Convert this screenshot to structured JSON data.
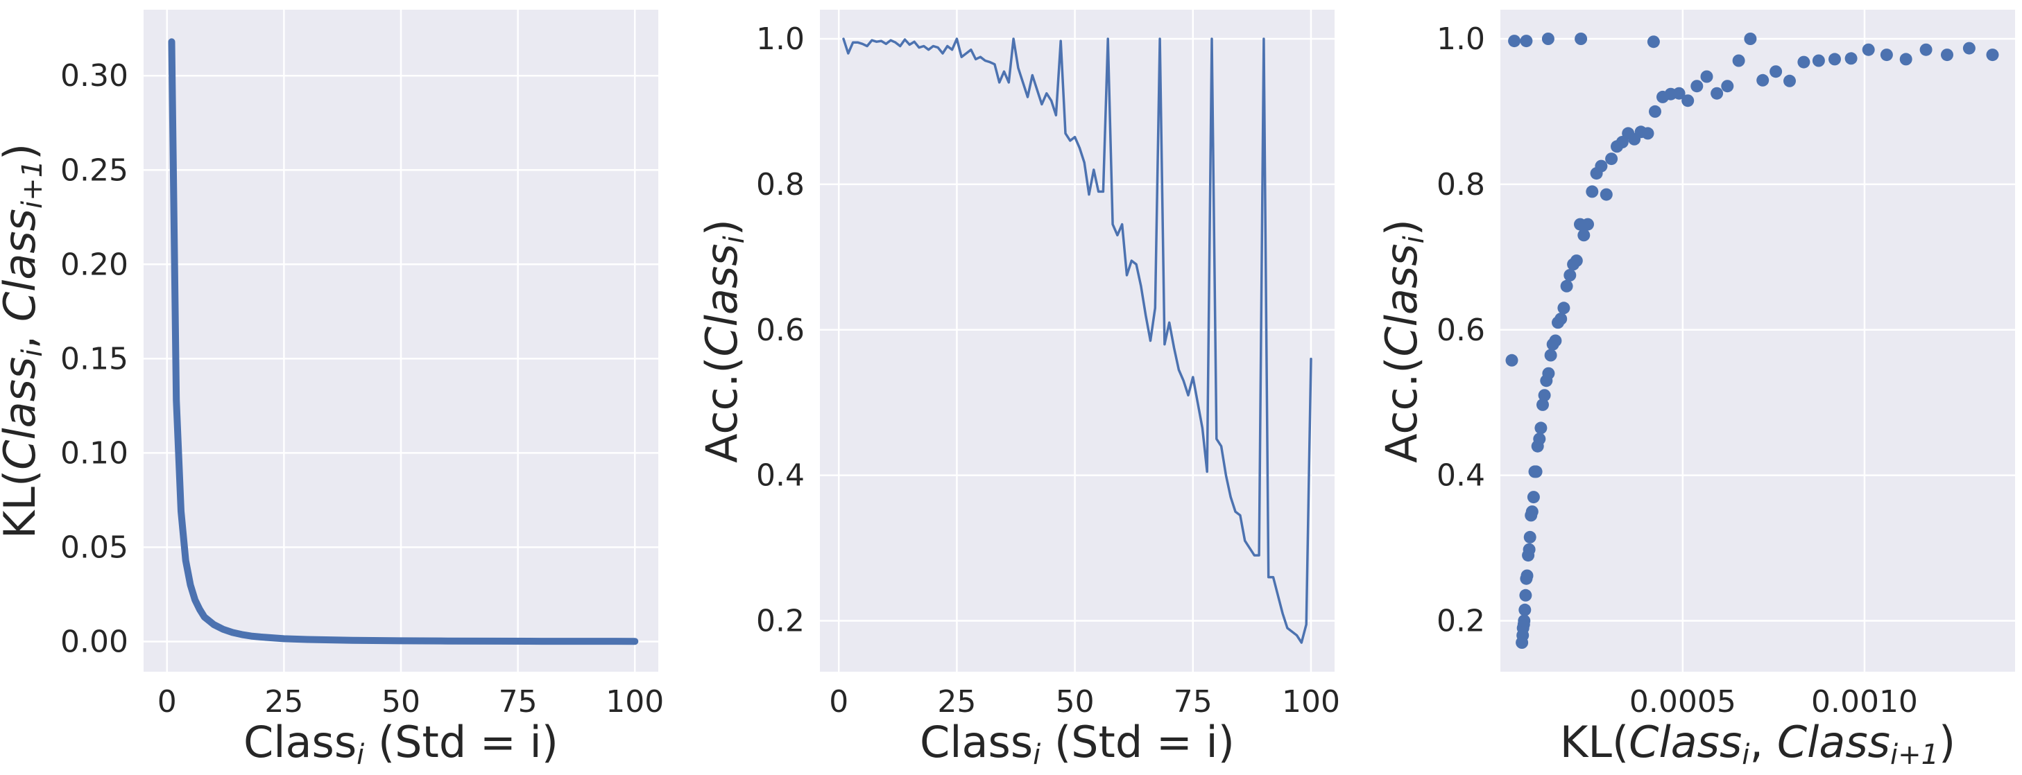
{
  "colors": {
    "panel_bg": "#EAEAF2",
    "grid": "#FFFFFF",
    "series": "#4C72B0",
    "text": "#262626"
  },
  "chart_data": [
    {
      "type": "line",
      "xlabel": "Class_i (Std = i)",
      "ylabel": "KL(Class_i, Class_{i+1})",
      "xlim": [
        -5,
        105
      ],
      "ylim": [
        -0.016,
        0.335
      ],
      "xticks": [
        0,
        25,
        50,
        75,
        100
      ],
      "xtick_labels": [
        "0",
        "25",
        "50",
        "75",
        "100"
      ],
      "yticks": [
        0.0,
        0.05,
        0.1,
        0.15,
        0.2,
        0.25,
        0.3
      ],
      "ytick_labels": [
        "0.00",
        "0.05",
        "0.10",
        "0.15",
        "0.20",
        "0.25",
        "0.30"
      ],
      "grid": true,
      "line_style": "thick",
      "x": [
        1,
        2,
        3,
        4,
        5,
        6,
        7,
        8,
        9,
        10,
        12,
        14,
        16,
        18,
        20,
        25,
        30,
        40,
        50,
        60,
        70,
        80,
        90,
        100
      ],
      "y": [
        0.318,
        0.128,
        0.069,
        0.043,
        0.03,
        0.022,
        0.017,
        0.013,
        0.011,
        0.009,
        0.0065,
        0.0048,
        0.0037,
        0.0029,
        0.0024,
        0.0015,
        0.0011,
        0.0006,
        0.0004,
        0.0003,
        0.0002,
        0.00015,
        0.00012,
        0.0001
      ]
    },
    {
      "type": "line",
      "xlabel": "Class_i (Std = i)",
      "ylabel": "Acc.(Class_i)",
      "xlim": [
        -4,
        105
      ],
      "ylim": [
        0.13,
        1.04
      ],
      "xticks": [
        0,
        25,
        50,
        75,
        100
      ],
      "xtick_labels": [
        "0",
        "25",
        "50",
        "75",
        "100"
      ],
      "yticks": [
        0.2,
        0.4,
        0.6,
        0.8,
        1.0
      ],
      "ytick_labels": [
        "0.2",
        "0.4",
        "0.6",
        "0.8",
        "1.0"
      ],
      "grid": true,
      "line_style": "thin",
      "x": [
        1,
        2,
        3,
        4,
        5,
        6,
        7,
        8,
        9,
        10,
        11,
        12,
        13,
        14,
        15,
        16,
        17,
        18,
        19,
        20,
        21,
        22,
        23,
        24,
        25,
        26,
        27,
        28,
        29,
        30,
        31,
        32,
        33,
        34,
        35,
        36,
        37,
        38,
        39,
        40,
        41,
        42,
        43,
        44,
        45,
        46,
        47,
        48,
        49,
        50,
        51,
        52,
        53,
        54,
        55,
        56,
        57,
        58,
        59,
        60,
        61,
        62,
        63,
        64,
        65,
        66,
        67,
        68,
        69,
        70,
        71,
        72,
        73,
        74,
        75,
        76,
        77,
        78,
        79,
        80,
        81,
        82,
        83,
        84,
        85,
        86,
        87,
        88,
        89,
        90,
        91,
        92,
        93,
        94,
        95,
        96,
        97,
        98,
        99,
        100
      ],
      "y": [
        1.0,
        0.98,
        0.995,
        0.995,
        0.993,
        0.99,
        0.998,
        0.996,
        0.997,
        0.993,
        0.998,
        0.995,
        0.99,
        0.999,
        0.992,
        0.996,
        0.988,
        0.99,
        0.985,
        0.99,
        0.988,
        0.98,
        0.99,
        0.985,
        1.0,
        0.975,
        0.98,
        0.985,
        0.972,
        0.975,
        0.97,
        0.968,
        0.965,
        0.94,
        0.955,
        0.94,
        1.0,
        0.96,
        0.94,
        0.92,
        0.95,
        0.93,
        0.91,
        0.925,
        0.915,
        0.895,
        0.997,
        0.87,
        0.86,
        0.865,
        0.85,
        0.83,
        0.786,
        0.82,
        0.79,
        0.79,
        1.0,
        0.745,
        0.73,
        0.745,
        0.675,
        0.695,
        0.69,
        0.66,
        0.62,
        0.585,
        0.63,
        1.0,
        0.58,
        0.61,
        0.575,
        0.545,
        0.53,
        0.51,
        0.535,
        0.5,
        0.465,
        0.405,
        1.0,
        0.45,
        0.44,
        0.4,
        0.37,
        0.35,
        0.345,
        0.31,
        0.3,
        0.29,
        0.29,
        1.0,
        0.26,
        0.26,
        0.235,
        0.21,
        0.19,
        0.185,
        0.18,
        0.17,
        0.195,
        0.56
      ]
    },
    {
      "type": "scatter",
      "xlabel": "KL(Class_i, Class_{i+1})",
      "ylabel": "Acc.(Class_i)",
      "xlim": [
        -1.4e-06,
        0.001414
      ],
      "ylim": [
        0.13,
        1.04
      ],
      "xticks": [
        0.0005,
        0.001
      ],
      "xtick_labels": [
        "0.0005",
        "0.0010"
      ],
      "yticks": [
        0.2,
        0.4,
        0.6,
        0.8,
        1.0
      ],
      "ytick_labels": [
        "0.2",
        "0.4",
        "0.6",
        "0.8",
        "1.0"
      ],
      "grid": true,
      "points": [
        [
          5.8e-05,
          0.17
        ],
        [
          6e-05,
          0.18
        ],
        [
          6.1e-05,
          0.19
        ],
        [
          6.3e-05,
          0.195
        ],
        [
          6.4e-05,
          0.2
        ],
        [
          6.6e-05,
          0.215
        ],
        [
          6.8e-05,
          0.235
        ],
        [
          7e-05,
          0.258
        ],
        [
          7.2e-05,
          0.262
        ],
        [
          7.5e-05,
          0.29
        ],
        [
          7.8e-05,
          0.298
        ],
        [
          8e-05,
          0.315
        ],
        [
          8.3e-05,
          0.345
        ],
        [
          8.6e-05,
          0.35
        ],
        [
          9e-05,
          0.37
        ],
        [
          9.3e-05,
          0.405
        ],
        [
          9.7e-05,
          0.405
        ],
        [
          0.000101,
          0.44
        ],
        [
          0.000106,
          0.45
        ],
        [
          0.00011,
          0.465
        ],
        [
          0.000115,
          0.497
        ],
        [
          0.00012,
          0.51
        ],
        [
          0.000125,
          0.53
        ],
        [
          0.000131,
          0.54
        ],
        [
          0.000137,
          0.565
        ],
        [
          0.000143,
          0.58
        ],
        [
          0.00015,
          0.585
        ],
        [
          0.000157,
          0.61
        ],
        [
          0.000165,
          0.615
        ],
        [
          0.000173,
          0.63
        ],
        [
          0.000181,
          0.66
        ],
        [
          0.00019,
          0.675
        ],
        [
          0.000199,
          0.69
        ],
        [
          0.000208,
          0.695
        ],
        [
          0.000218,
          0.745
        ],
        [
          0.000228,
          0.73
        ],
        [
          0.000239,
          0.745
        ],
        [
          0.000251,
          0.79
        ],
        [
          0.000263,
          0.815
        ],
        [
          0.000276,
          0.825
        ],
        [
          0.00029,
          0.786
        ],
        [
          0.000304,
          0.835
        ],
        [
          0.000319,
          0.852
        ],
        [
          0.000334,
          0.858
        ],
        [
          0.00035,
          0.87
        ],
        [
          0.000367,
          0.862
        ],
        [
          0.000385,
          0.872
        ],
        [
          0.000404,
          0.87
        ],
        [
          0.000424,
          0.9
        ],
        [
          0.000445,
          0.92
        ],
        [
          0.000467,
          0.924
        ],
        [
          0.00049,
          0.925
        ],
        [
          0.000514,
          0.915
        ],
        [
          0.000539,
          0.935
        ],
        [
          0.000566,
          0.948
        ],
        [
          0.000594,
          0.925
        ],
        [
          0.000623,
          0.935
        ],
        [
          0.000654,
          0.97
        ],
        [
          0.000686,
          1.0
        ],
        [
          0.00072,
          0.943
        ],
        [
          0.000756,
          0.955
        ],
        [
          0.000794,
          0.942
        ],
        [
          0.000833,
          0.968
        ],
        [
          0.000874,
          0.97
        ],
        [
          0.000918,
          0.972
        ],
        [
          0.000963,
          0.973
        ],
        [
          0.001011,
          0.985
        ],
        [
          0.001061,
          0.978
        ],
        [
          0.001114,
          0.972
        ],
        [
          0.001169,
          0.985
        ],
        [
          0.001227,
          0.978
        ],
        [
          0.001288,
          0.987
        ],
        [
          0.001352,
          0.978
        ],
        [
          3e-05,
          0.558
        ],
        [
          3.7e-05,
          0.997
        ],
        [
          7e-05,
          0.997
        ],
        [
          0.00013,
          1.0
        ],
        [
          0.00022,
          1.0
        ],
        [
          0.00042,
          0.996
        ]
      ]
    }
  ]
}
